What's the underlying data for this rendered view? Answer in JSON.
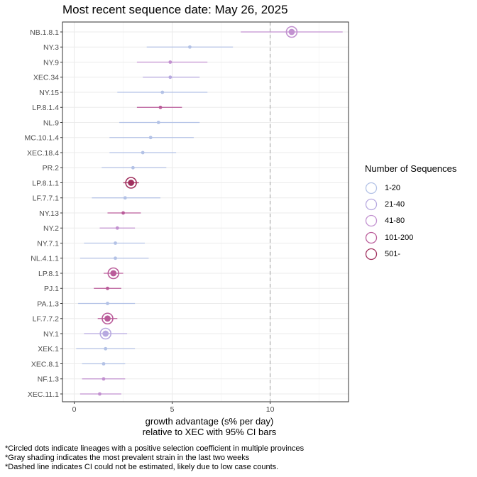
{
  "title": "Most recent sequence date: May 26, 2025",
  "chart_data": {
    "type": "scatter",
    "title": "Most recent sequence date: May 26, 2025",
    "xlabel_line1": "growth advantage (s% per day)",
    "xlabel_line2": "relative to  XEC  with 95% CI bars",
    "xlim": [
      -0.6,
      14
    ],
    "xticks": [
      0,
      5,
      10
    ],
    "xtick_labels": [
      "0",
      "5",
      "10"
    ],
    "reference_line_x": 10,
    "grid": true,
    "legend_title": "Number of Sequences",
    "legend_placement": "right",
    "legend": [
      {
        "label": "1-20",
        "color": "#b3c2e6"
      },
      {
        "label": "21-40",
        "color": "#b7a9e0"
      },
      {
        "label": "41-80",
        "color": "#c291d0"
      },
      {
        "label": "101-200",
        "color": "#ba5c9a"
      },
      {
        "label": "501-",
        "color": "#a0305e"
      }
    ],
    "lineages": [
      {
        "name": "NB.1.8.1",
        "value": 11.1,
        "ci": [
          8.5,
          13.7
        ],
        "group": 2,
        "circled": true
      },
      {
        "name": "NY.3",
        "value": 5.9,
        "ci": [
          3.7,
          8.1
        ],
        "group": 0,
        "circled": false
      },
      {
        "name": "NY.9",
        "value": 4.9,
        "ci": [
          3.2,
          6.8
        ],
        "group": 2,
        "circled": false
      },
      {
        "name": "XEC.34",
        "value": 4.9,
        "ci": [
          3.5,
          6.4
        ],
        "group": 1,
        "circled": false
      },
      {
        "name": "NY.15",
        "value": 4.5,
        "ci": [
          2.2,
          6.8
        ],
        "group": 0,
        "circled": false
      },
      {
        "name": "LP.8.1.4",
        "value": 4.4,
        "ci": [
          3.2,
          5.5
        ],
        "group": 3,
        "circled": false
      },
      {
        "name": "NL.9",
        "value": 4.3,
        "ci": [
          2.3,
          6.4
        ],
        "group": 0,
        "circled": false
      },
      {
        "name": "MC.10.1.4",
        "value": 3.9,
        "ci": [
          1.8,
          6.1
        ],
        "group": 0,
        "circled": false
      },
      {
        "name": "XEC.18.4",
        "value": 3.5,
        "ci": [
          1.8,
          5.2
        ],
        "group": 0,
        "circled": false
      },
      {
        "name": "PR.2",
        "value": 3.0,
        "ci": [
          1.4,
          4.7
        ],
        "group": 0,
        "circled": false
      },
      {
        "name": "LP.8.1.1",
        "value": 2.9,
        "ci": [
          2.5,
          3.3
        ],
        "group": 4,
        "circled": true
      },
      {
        "name": "LF.7.7.1",
        "value": 2.6,
        "ci": [
          0.9,
          4.4
        ],
        "group": 0,
        "circled": false
      },
      {
        "name": "NY.13",
        "value": 2.5,
        "ci": [
          1.7,
          3.4
        ],
        "group": 3,
        "circled": false
      },
      {
        "name": "NY.2",
        "value": 2.2,
        "ci": [
          1.3,
          3.1
        ],
        "group": 2,
        "circled": false
      },
      {
        "name": "NY.7.1",
        "value": 2.1,
        "ci": [
          0.5,
          3.6
        ],
        "group": 0,
        "circled": false
      },
      {
        "name": "NL.4.1.1",
        "value": 2.1,
        "ci": [
          0.3,
          3.8
        ],
        "group": 0,
        "circled": false
      },
      {
        "name": "LP.8.1",
        "value": 2.0,
        "ci": [
          1.5,
          2.5
        ],
        "group": 3,
        "circled": true
      },
      {
        "name": "PJ.1",
        "value": 1.7,
        "ci": [
          1.0,
          2.4
        ],
        "group": 3,
        "circled": false
      },
      {
        "name": "PA.1.3",
        "value": 1.7,
        "ci": [
          0.2,
          3.1
        ],
        "group": 0,
        "circled": false
      },
      {
        "name": "LF.7.7.2",
        "value": 1.7,
        "ci": [
          1.2,
          2.2
        ],
        "group": 3,
        "circled": true
      },
      {
        "name": "NY.1",
        "value": 1.6,
        "ci": [
          0.5,
          2.7
        ],
        "group": 1,
        "circled": true
      },
      {
        "name": "XEK.1",
        "value": 1.6,
        "ci": [
          0.1,
          3.1
        ],
        "group": 0,
        "circled": false
      },
      {
        "name": "XEC.8.1",
        "value": 1.5,
        "ci": [
          0.4,
          2.6
        ],
        "group": 0,
        "circled": false
      },
      {
        "name": "NF.1.3",
        "value": 1.5,
        "ci": [
          0.4,
          2.6
        ],
        "group": 2,
        "circled": false
      },
      {
        "name": "XEC.11.1",
        "value": 1.3,
        "ci": [
          0.3,
          2.4
        ],
        "group": 2,
        "circled": false
      }
    ]
  },
  "footnotes": [
    "*Circled dots indicate lineages with a positive selection coefficient in multiple provinces",
    "*Gray shading indicates the most prevalent strain in the last two weeks",
    "*Dashed line indicates CI could not be estimated, likely due to low case counts."
  ]
}
